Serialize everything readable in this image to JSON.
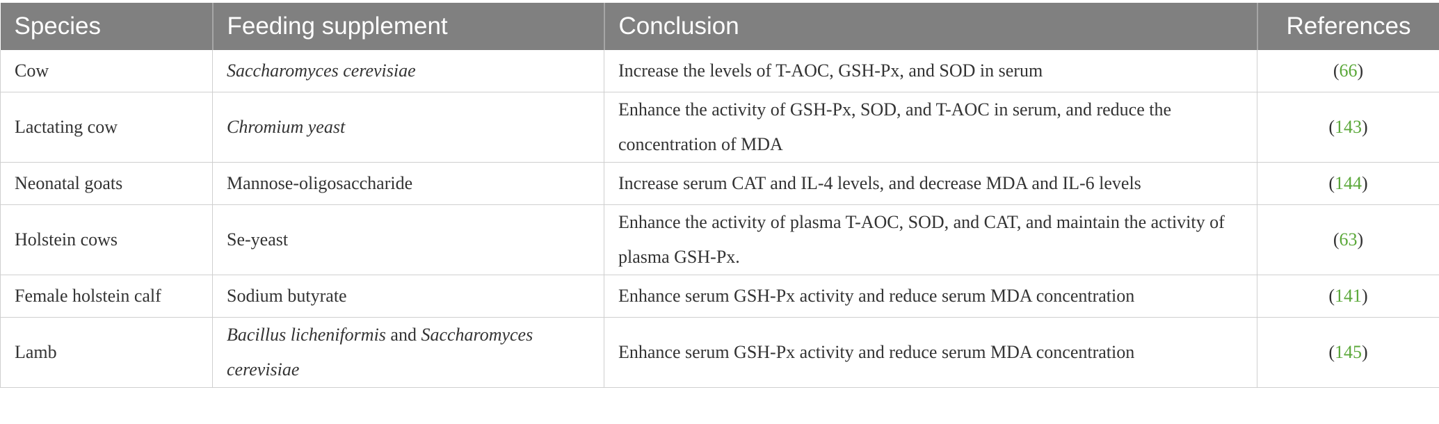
{
  "headers": {
    "species": "Species",
    "feeding_supplement": "Feeding supplement",
    "conclusion": "Conclusion",
    "references": "References"
  },
  "rows": [
    {
      "species": "Cow",
      "supplement": [
        {
          "text": "Saccharomyces cerevisiae",
          "italic": true
        }
      ],
      "conclusion": "Increase the levels of T-AOC, GSH-Px, and SOD in serum",
      "ref": "66"
    },
    {
      "species": "Lactating cow",
      "supplement": [
        {
          "text": "Chromium yeast",
          "italic": true
        }
      ],
      "conclusion": "Enhance the activity of GSH-Px, SOD, and T-AOC in serum, and reduce the concentration of MDA",
      "ref": "143"
    },
    {
      "species": "Neonatal goats",
      "supplement": [
        {
          "text": "Mannose-oligosaccharide",
          "italic": false
        }
      ],
      "conclusion": "Increase serum CAT and IL-4 levels, and decrease MDA and IL-6 levels",
      "ref": "144"
    },
    {
      "species": "Holstein cows",
      "supplement": [
        {
          "text": "Se-yeast",
          "italic": false
        }
      ],
      "conclusion": "Enhance the activity of plasma T-AOC, SOD, and CAT, and maintain the activity of plasma GSH-Px.",
      "ref": "63"
    },
    {
      "species": "Female holstein calf",
      "supplement": [
        {
          "text": "Sodium butyrate",
          "italic": false
        }
      ],
      "conclusion": "Enhance serum GSH-Px activity and reduce serum MDA concentration",
      "ref": "141"
    },
    {
      "species": "Lamb",
      "supplement": [
        {
          "text": "Bacillus licheniformis",
          "italic": true
        },
        {
          "text": " and ",
          "italic": false
        },
        {
          "text": "Saccharomyces cerevisiae",
          "italic": true
        }
      ],
      "conclusion": "Enhance serum GSH-Px activity and reduce serum MDA concentration",
      "ref": "145"
    }
  ],
  "ref_open": "(",
  "ref_close": ")"
}
